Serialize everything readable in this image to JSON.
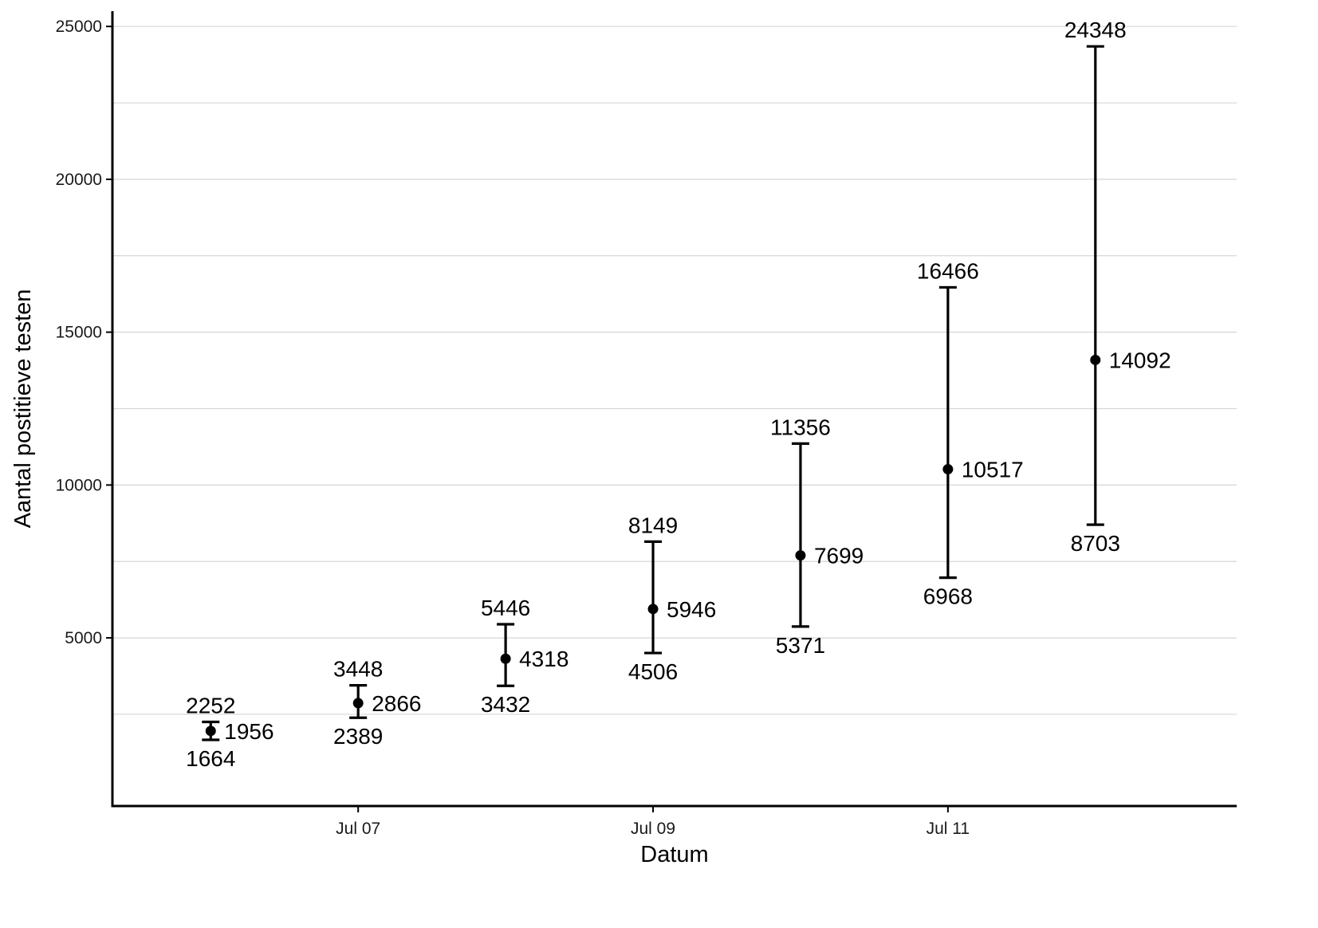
{
  "chart_data": {
    "type": "errorbar",
    "title": "",
    "xlabel": "Datum",
    "ylabel": "Aantal postitieve testen",
    "x": [
      "2022-07-06",
      "2022-07-07",
      "2022-07-08",
      "2022-07-09",
      "2022-07-10",
      "2022-07-11",
      "2022-07-12"
    ],
    "x_ticks": [
      {
        "date": "2022-07-07",
        "label": "Jul 07"
      },
      {
        "date": "2022-07-09",
        "label": "Jul 09"
      },
      {
        "date": "2022-07-11",
        "label": "Jul 11"
      }
    ],
    "x_range": [
      "2022-07-05 08:00",
      "2022-07-12 23:00"
    ],
    "ylim": [
      -500,
      25500
    ],
    "y_ticks": [
      5000,
      10000,
      15000,
      20000,
      25000
    ],
    "y_minor_grid": [
      2500,
      7500,
      12500,
      17500,
      22500
    ],
    "grid": "horizontal",
    "points": [
      {
        "date": "2022-07-06",
        "value": 1956,
        "lower": 1664,
        "upper": 2252
      },
      {
        "date": "2022-07-07",
        "value": 2866,
        "lower": 2389,
        "upper": 3448
      },
      {
        "date": "2022-07-08",
        "value": 4318,
        "lower": 3432,
        "upper": 5446
      },
      {
        "date": "2022-07-09",
        "value": 5946,
        "lower": 4506,
        "upper": 8149
      },
      {
        "date": "2022-07-10",
        "value": 7699,
        "lower": 5371,
        "upper": 11356
      },
      {
        "date": "2022-07-11",
        "value": 10517,
        "lower": 6968,
        "upper": 16466
      },
      {
        "date": "2022-07-12",
        "value": 14092,
        "lower": 8703,
        "upper": 24348
      }
    ],
    "point_labels": [
      {
        "value": "1956",
        "lower": "1664",
        "upper": "2252"
      },
      {
        "value": "2866",
        "lower": "2389",
        "upper": "3448"
      },
      {
        "value": "4318",
        "lower": "3432",
        "upper": "5446"
      },
      {
        "value": "5946",
        "lower": "4506",
        "upper": "8149"
      },
      {
        "value": "7699",
        "lower": "5371",
        "upper": "11356"
      },
      {
        "value": "10517",
        "lower": "6968",
        "upper": "16466"
      },
      {
        "value": "14092",
        "lower": "8703",
        "upper": "24348"
      }
    ],
    "y_tick_labels": [
      "5000",
      "10000",
      "15000",
      "20000",
      "25000"
    ],
    "colors": {
      "point": "#000000",
      "grid": "#d6d6d6",
      "axis": "#000000"
    }
  }
}
